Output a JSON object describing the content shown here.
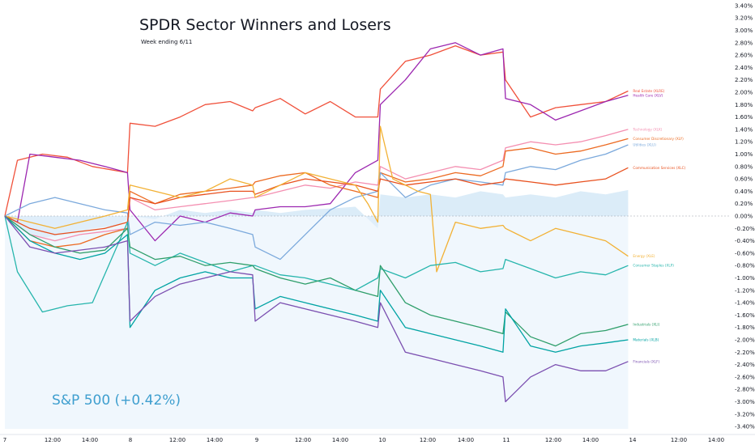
{
  "chart_data": {
    "type": "line",
    "title": "SPDR Sector Winners and Losers",
    "subtitle": "Week ending 6/11",
    "benchmark_label": "S&P 500 (+0.42%)",
    "x_ticks": [
      "7",
      "12:00",
      "14:00",
      "8",
      "12:00",
      "14:00",
      "9",
      "12:00",
      "14:00",
      "10",
      "12:00",
      "14:00",
      "11",
      "12:00",
      "14:00",
      "14",
      "12:00",
      "14:00"
    ],
    "y_ticks": [
      "3.40%",
      "3.20%",
      "3.00%",
      "2.80%",
      "2.60%",
      "2.40%",
      "2.20%",
      "2.00%",
      "1.80%",
      "1.60%",
      "1.40%",
      "1.20%",
      "1.00%",
      "0.80%",
      "0.60%",
      "0.40%",
      "0.20%",
      "0.00%",
      "-0.20%",
      "-0.40%",
      "-0.60%",
      "-0.80%",
      "-1.00%",
      "-1.20%",
      "-1.40%",
      "-1.60%",
      "-1.80%",
      "-2.00%",
      "-2.20%",
      "-2.40%",
      "-2.60%",
      "-2.80%",
      "-3.00%",
      "-3.20%",
      "-3.40%"
    ],
    "ylim": [
      -3.4,
      3.4
    ],
    "x_unit": "trading days (0 = day 7 open, 5 = day 14 open)",
    "xlim": [
      0,
      5.7
    ],
    "grid": false,
    "benchmark": {
      "name": "S&P 500",
      "color": "#cfe5f6",
      "x": [
        0,
        0.15,
        0.3,
        0.5,
        0.7,
        0.9,
        0.98,
        1.0,
        1.2,
        1.4,
        1.6,
        1.8,
        1.98,
        2.0,
        2.2,
        2.4,
        2.6,
        2.8,
        2.98,
        3.0,
        3.2,
        3.4,
        3.6,
        3.8,
        3.98,
        4.0,
        4.2,
        4.4,
        4.6,
        4.8,
        4.98
      ],
      "values": [
        0.0,
        -0.25,
        -0.35,
        -0.3,
        -0.2,
        -0.15,
        -0.05,
        0.0,
        -0.05,
        0.1,
        0.05,
        0.1,
        0.05,
        0.1,
        0.05,
        0.1,
        0.12,
        0.15,
        -0.2,
        0.35,
        0.3,
        0.35,
        0.3,
        0.4,
        0.35,
        0.3,
        0.35,
        0.3,
        0.4,
        0.35,
        0.42
      ]
    },
    "series": [
      {
        "name": "Real Estate (XLRE)",
        "color": "#f0513b",
        "x": [
          0,
          0.1,
          0.3,
          0.5,
          0.7,
          0.98,
          1.0,
          1.2,
          1.4,
          1.6,
          1.8,
          1.98,
          2.0,
          2.2,
          2.4,
          2.6,
          2.8,
          2.98,
          3.0,
          3.2,
          3.4,
          3.6,
          3.8,
          3.98,
          4.0,
          4.2,
          4.4,
          4.6,
          4.8,
          4.98
        ],
        "values": [
          0.0,
          0.9,
          1.0,
          0.95,
          0.8,
          0.7,
          1.5,
          1.45,
          1.6,
          1.8,
          1.85,
          1.7,
          1.75,
          1.9,
          1.65,
          1.85,
          1.6,
          1.6,
          2.05,
          2.5,
          2.6,
          2.75,
          2.6,
          2.65,
          2.2,
          1.6,
          1.75,
          1.8,
          1.85,
          2.02
        ]
      },
      {
        "name": "Health Care (XLV)",
        "color": "#9c27b0",
        "x": [
          0,
          0.1,
          0.2,
          0.4,
          0.6,
          0.8,
          0.98,
          1.0,
          1.2,
          1.4,
          1.6,
          1.8,
          1.98,
          2.0,
          2.2,
          2.4,
          2.6,
          2.8,
          2.98,
          3.0,
          3.2,
          3.4,
          3.6,
          3.8,
          3.98,
          4.0,
          4.2,
          4.4,
          4.6,
          4.8,
          4.98
        ],
        "values": [
          0.0,
          -0.1,
          1.0,
          0.95,
          0.9,
          0.8,
          0.7,
          0.1,
          -0.4,
          0.0,
          -0.1,
          0.05,
          0.0,
          0.1,
          0.15,
          0.15,
          0.2,
          0.7,
          0.9,
          1.8,
          2.2,
          2.7,
          2.8,
          2.6,
          2.7,
          1.9,
          1.8,
          1.55,
          1.7,
          1.85,
          1.95
        ]
      },
      {
        "name": "Technology (XLK)",
        "color": "#f48fb1",
        "x": [
          0,
          0.2,
          0.4,
          0.6,
          0.8,
          0.98,
          1.0,
          1.2,
          1.4,
          1.6,
          1.8,
          1.98,
          2.0,
          2.2,
          2.4,
          2.6,
          2.8,
          2.98,
          3.0,
          3.2,
          3.4,
          3.6,
          3.8,
          3.98,
          4.0,
          4.2,
          4.4,
          4.6,
          4.8,
          4.98
        ],
        "values": [
          0.0,
          -0.3,
          -0.4,
          -0.3,
          -0.25,
          -0.2,
          0.3,
          0.1,
          0.15,
          0.2,
          0.25,
          0.3,
          0.3,
          0.4,
          0.5,
          0.45,
          0.55,
          0.5,
          0.8,
          0.6,
          0.7,
          0.8,
          0.75,
          0.9,
          1.1,
          1.2,
          1.15,
          1.2,
          1.3,
          1.4
        ]
      },
      {
        "name": "Consumer Discretionary (XLY)",
        "color": "#ec6a21",
        "x": [
          0,
          0.2,
          0.4,
          0.6,
          0.8,
          0.98,
          1.0,
          1.2,
          1.4,
          1.6,
          1.8,
          1.98,
          2.0,
          2.2,
          2.4,
          2.6,
          2.8,
          2.98,
          3.0,
          3.2,
          3.4,
          3.6,
          3.8,
          3.98,
          4.0,
          4.2,
          4.4,
          4.6,
          4.8,
          4.98
        ],
        "values": [
          0.0,
          -0.4,
          -0.5,
          -0.45,
          -0.3,
          -0.2,
          0.4,
          0.2,
          0.35,
          0.4,
          0.45,
          0.5,
          0.55,
          0.65,
          0.7,
          0.5,
          0.4,
          0.3,
          0.7,
          0.55,
          0.6,
          0.7,
          0.65,
          0.8,
          1.05,
          1.1,
          1.0,
          1.05,
          1.15,
          1.25
        ]
      },
      {
        "name": "Utilities (XLU)",
        "color": "#7ba9dc",
        "x": [
          0,
          0.2,
          0.4,
          0.6,
          0.8,
          0.98,
          1.0,
          1.2,
          1.4,
          1.6,
          1.8,
          1.98,
          2.0,
          2.2,
          2.4,
          2.6,
          2.8,
          2.98,
          3.0,
          3.2,
          3.4,
          3.6,
          3.8,
          3.98,
          4.0,
          4.2,
          4.4,
          4.6,
          4.8,
          4.98
        ],
        "values": [
          0.0,
          0.2,
          0.3,
          0.2,
          0.1,
          0.05,
          -0.3,
          -0.1,
          -0.15,
          -0.1,
          -0.2,
          -0.3,
          -0.5,
          -0.7,
          -0.3,
          0.1,
          0.3,
          0.4,
          0.7,
          0.3,
          0.5,
          0.6,
          0.55,
          0.5,
          0.7,
          0.8,
          0.75,
          0.9,
          1.0,
          1.15
        ]
      },
      {
        "name": "Communication Services (XLC)",
        "color": "#e8501e",
        "x": [
          0,
          0.2,
          0.4,
          0.6,
          0.8,
          0.98,
          1.0,
          1.2,
          1.4,
          1.6,
          1.8,
          1.98,
          2.0,
          2.2,
          2.4,
          2.6,
          2.8,
          2.98,
          3.0,
          3.2,
          3.4,
          3.6,
          3.8,
          3.98,
          4.0,
          4.2,
          4.4,
          4.6,
          4.8,
          4.98
        ],
        "values": [
          0.0,
          -0.2,
          -0.3,
          -0.25,
          -0.2,
          -0.1,
          0.3,
          0.2,
          0.3,
          0.35,
          0.4,
          0.4,
          0.35,
          0.5,
          0.6,
          0.55,
          0.5,
          0.4,
          0.6,
          0.5,
          0.55,
          0.6,
          0.5,
          0.55,
          0.6,
          0.55,
          0.5,
          0.55,
          0.6,
          0.78
        ]
      },
      {
        "name": "Energy (XLE)",
        "color": "#f2b134",
        "x": [
          0,
          0.2,
          0.4,
          0.6,
          0.8,
          0.98,
          1.0,
          1.2,
          1.4,
          1.6,
          1.8,
          1.98,
          2.0,
          2.2,
          2.4,
          2.6,
          2.8,
          2.9,
          2.98,
          3.0,
          3.1,
          3.3,
          3.4,
          3.45,
          3.6,
          3.8,
          3.98,
          4.0,
          4.2,
          4.4,
          4.6,
          4.8,
          4.98
        ],
        "values": [
          0.0,
          -0.1,
          -0.2,
          -0.1,
          0.0,
          0.1,
          0.5,
          0.4,
          0.3,
          0.4,
          0.6,
          0.5,
          0.3,
          0.5,
          0.7,
          0.6,
          0.5,
          0.2,
          -0.1,
          1.45,
          0.6,
          0.4,
          0.35,
          -0.9,
          -0.1,
          -0.2,
          -0.15,
          -0.2,
          -0.4,
          -0.2,
          -0.3,
          -0.4,
          -0.65
        ]
      },
      {
        "name": "Consumer Staples (XLP)",
        "color": "#26b5ac",
        "x": [
          0,
          0.1,
          0.3,
          0.5,
          0.7,
          0.98,
          1.0,
          1.2,
          1.4,
          1.6,
          1.8,
          1.98,
          2.0,
          2.2,
          2.4,
          2.6,
          2.8,
          2.98,
          3.0,
          3.2,
          3.4,
          3.6,
          3.8,
          3.98,
          4.0,
          4.2,
          4.4,
          4.6,
          4.8,
          4.98
        ],
        "values": [
          0.0,
          -0.9,
          -1.55,
          -1.45,
          -1.4,
          -0.1,
          -0.6,
          -0.8,
          -0.6,
          -0.75,
          -0.9,
          -0.8,
          -0.8,
          -0.95,
          -1.0,
          -1.1,
          -1.2,
          -1.0,
          -0.85,
          -1.0,
          -0.8,
          -0.75,
          -0.9,
          -0.85,
          -0.7,
          -0.85,
          -1.0,
          -0.9,
          -0.95,
          -0.8
        ]
      },
      {
        "name": "Industrials (XLI)",
        "color": "#2e9e6a",
        "x": [
          0,
          0.2,
          0.4,
          0.6,
          0.8,
          0.98,
          1.0,
          1.2,
          1.4,
          1.6,
          1.8,
          1.98,
          2.0,
          2.2,
          2.4,
          2.6,
          2.8,
          2.98,
          3.0,
          3.2,
          3.4,
          3.6,
          3.8,
          3.98,
          4.0,
          4.2,
          4.4,
          4.6,
          4.8,
          4.98
        ],
        "values": [
          0.0,
          -0.3,
          -0.5,
          -0.6,
          -0.55,
          -0.2,
          -0.5,
          -0.7,
          -0.65,
          -0.8,
          -0.75,
          -0.8,
          -0.85,
          -1.0,
          -1.1,
          -1.0,
          -1.2,
          -1.3,
          -0.8,
          -1.4,
          -1.6,
          -1.7,
          -1.8,
          -1.9,
          -1.55,
          -1.95,
          -2.1,
          -1.9,
          -1.85,
          -1.75
        ]
      },
      {
        "name": "Materials (XLB)",
        "color": "#00a3a3",
        "x": [
          0,
          0.2,
          0.4,
          0.6,
          0.8,
          0.98,
          1.0,
          1.2,
          1.4,
          1.6,
          1.8,
          1.98,
          2.0,
          2.2,
          2.4,
          2.6,
          2.8,
          2.98,
          3.0,
          3.2,
          3.4,
          3.6,
          3.8,
          3.98,
          4.0,
          4.2,
          4.4,
          4.6,
          4.8,
          4.98
        ],
        "values": [
          0.0,
          -0.4,
          -0.6,
          -0.7,
          -0.6,
          -0.3,
          -1.8,
          -1.2,
          -1.0,
          -0.9,
          -1.0,
          -1.0,
          -1.5,
          -1.3,
          -1.4,
          -1.5,
          -1.6,
          -1.7,
          -1.2,
          -1.8,
          -1.9,
          -2.0,
          -2.1,
          -2.2,
          -1.5,
          -2.1,
          -2.2,
          -2.1,
          -2.05,
          -2.0
        ]
      },
      {
        "name": "Financials (XLF)",
        "color": "#7b4fb0",
        "x": [
          0,
          0.2,
          0.4,
          0.6,
          0.8,
          0.98,
          1.0,
          1.2,
          1.4,
          1.6,
          1.8,
          1.98,
          2.0,
          2.2,
          2.4,
          2.6,
          2.8,
          2.98,
          3.0,
          3.2,
          3.4,
          3.6,
          3.8,
          3.98,
          4.0,
          4.2,
          4.4,
          4.6,
          4.8,
          4.98
        ],
        "values": [
          0.0,
          -0.5,
          -0.6,
          -0.55,
          -0.5,
          -0.4,
          -1.7,
          -1.3,
          -1.1,
          -1.0,
          -0.9,
          -0.95,
          -1.7,
          -1.4,
          -1.5,
          -1.6,
          -1.7,
          -1.8,
          -1.4,
          -2.2,
          -2.3,
          -2.4,
          -2.5,
          -2.6,
          -3.0,
          -2.6,
          -2.4,
          -2.5,
          -2.5,
          -2.35
        ]
      }
    ]
  }
}
